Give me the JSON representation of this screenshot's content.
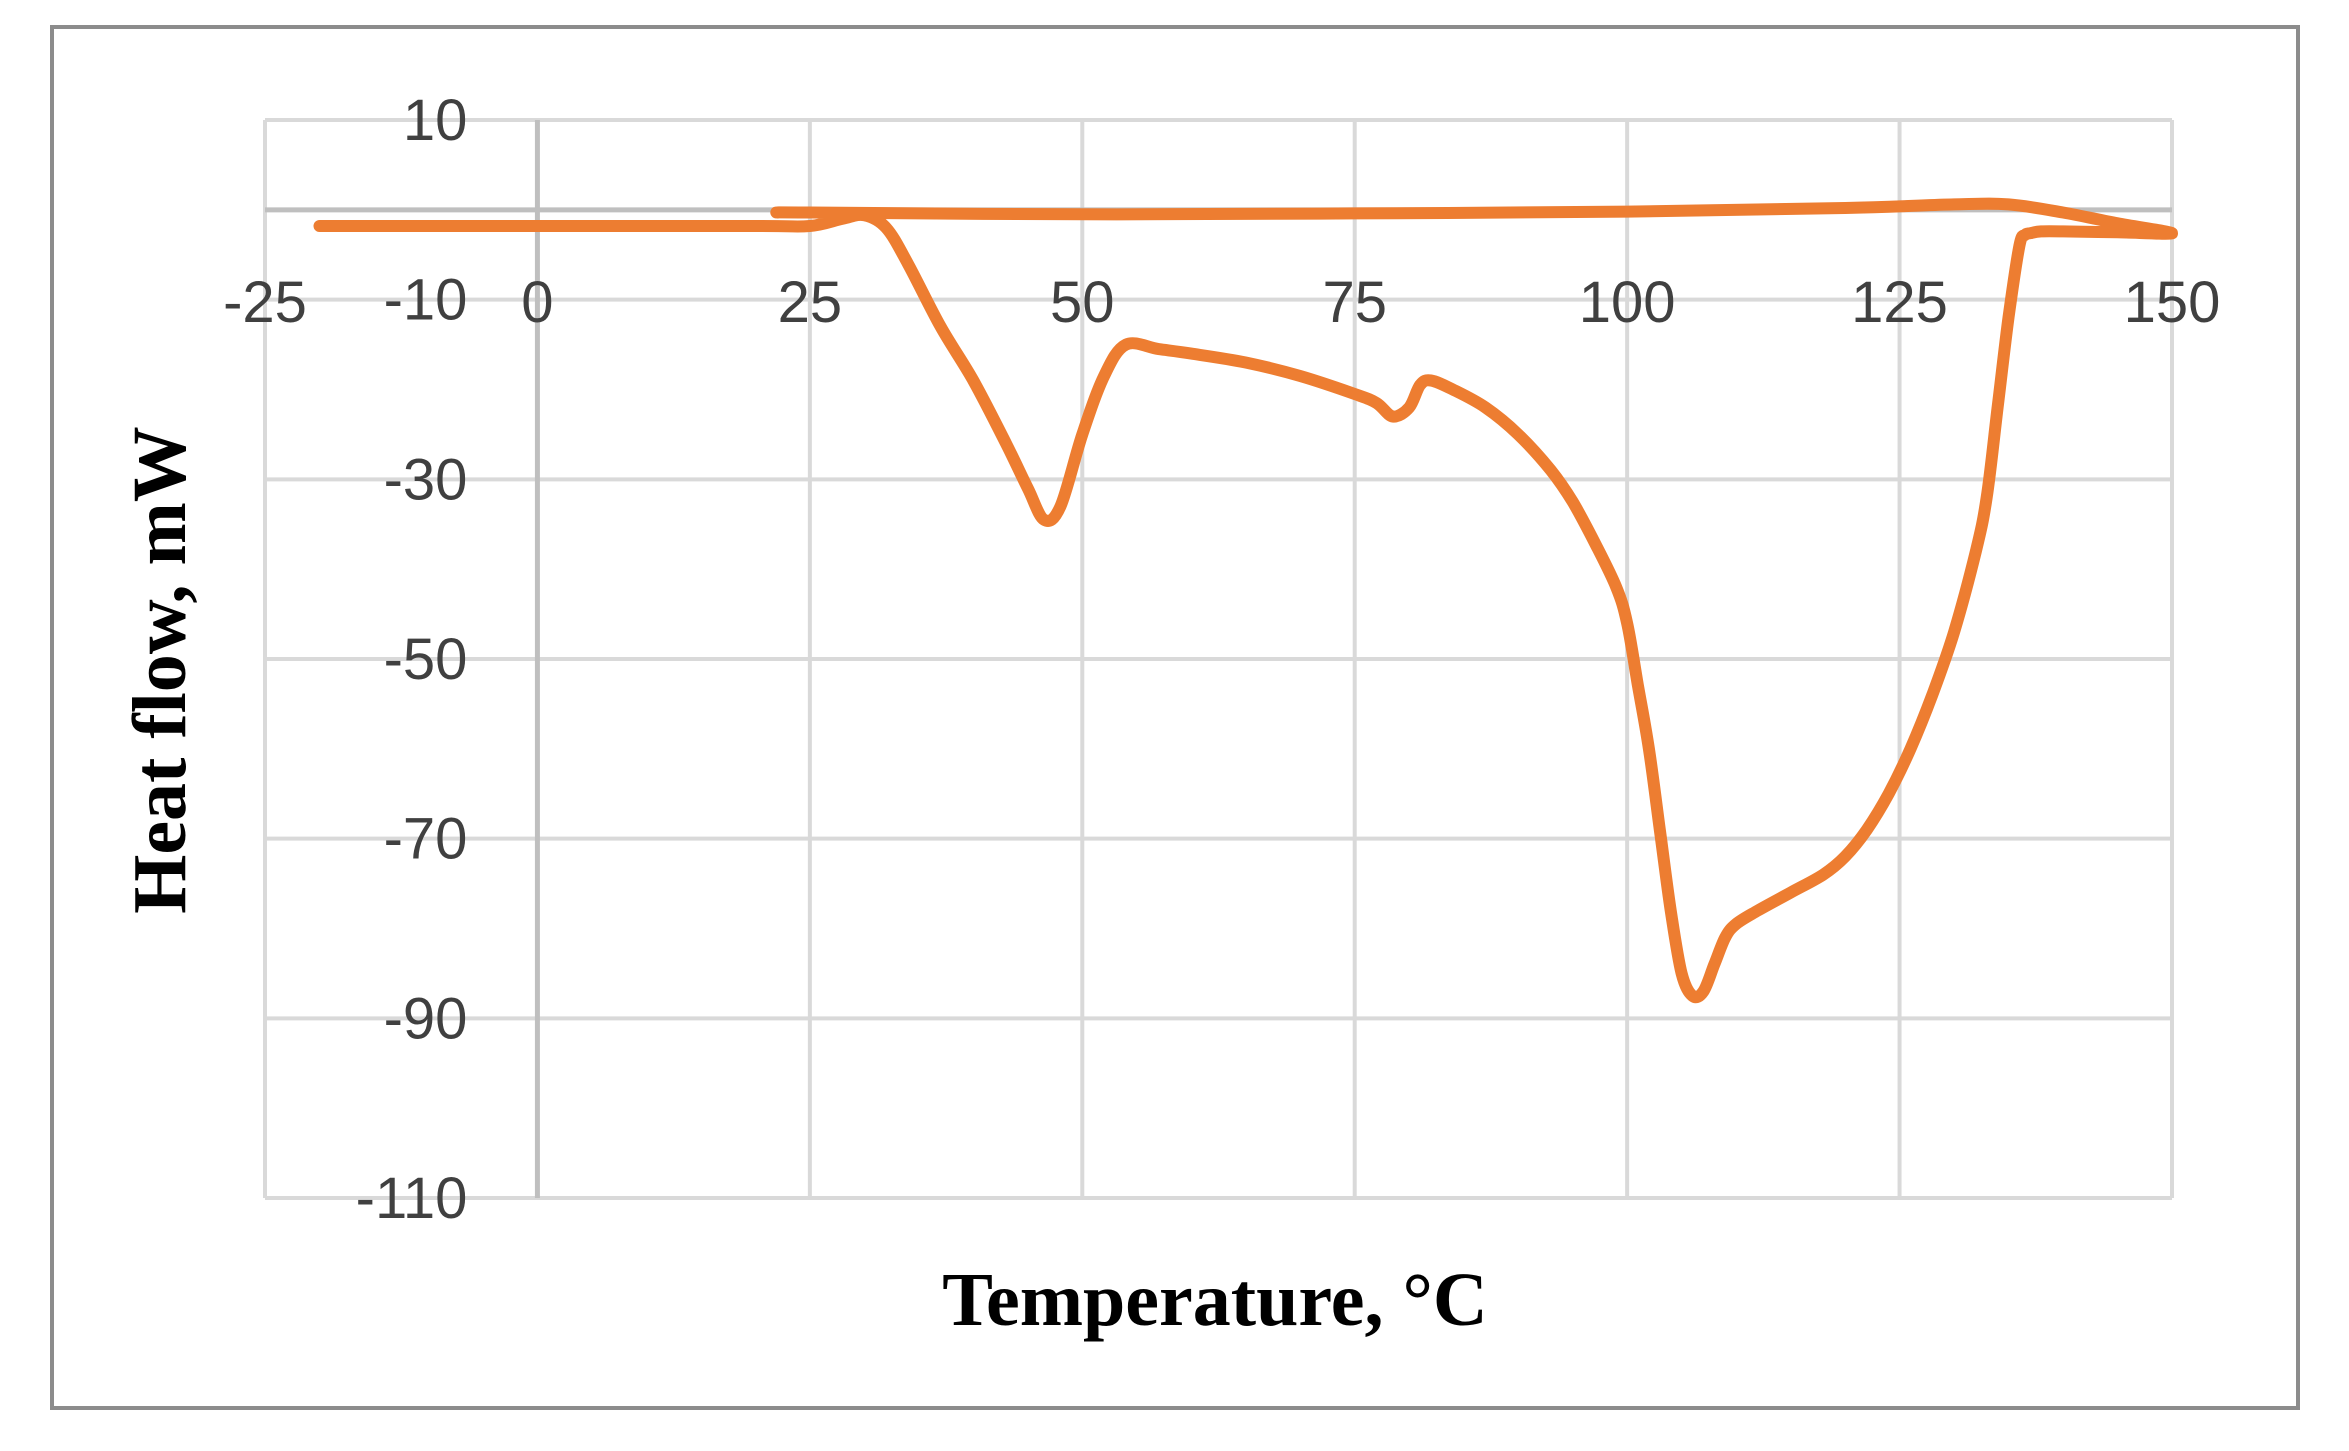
{
  "chart_data": {
    "type": "line",
    "title": "",
    "xlabel": "Temperature, °C",
    "ylabel": "Heat flow, mW",
    "xlim": [
      -25,
      150
    ],
    "ylim": [
      -110,
      10
    ],
    "xticks": [
      -25,
      0,
      25,
      50,
      75,
      100,
      125,
      150
    ],
    "yticks": [
      10,
      -10,
      -30,
      -50,
      -70,
      -90,
      -110
    ],
    "grid": true,
    "legend": "none",
    "colors": {
      "series": "#ed7d31",
      "grid": "#d9d9d9",
      "frame": "#8c8c8c",
      "tick_text": "#404040"
    },
    "series": [
      {
        "x": [
          -20,
          0,
          20,
          25,
          28,
          30,
          32,
          34,
          37,
          40,
          43,
          45,
          46.5,
          48,
          50,
          52,
          54,
          57,
          60,
          65,
          70,
          75,
          77,
          78.5,
          80,
          81,
          82,
          84,
          87,
          90,
          93,
          95,
          97,
          99,
          100,
          101,
          102,
          103,
          104,
          105,
          106,
          107,
          108,
          109,
          110,
          112,
          115,
          118,
          120,
          122,
          124,
          126,
          128,
          130,
          132,
          133,
          134,
          135,
          136,
          136.5,
          137,
          138,
          140,
          145,
          150,
          145,
          140,
          135,
          130,
          120,
          100,
          75,
          50,
          25,
          22
        ],
        "y": [
          -1.8,
          -1.8,
          -1.8,
          -1.8,
          -1.0,
          -0.6,
          -2.0,
          -6.0,
          -13.0,
          -19.0,
          -26.0,
          -31.0,
          -34.5,
          -33.0,
          -25.0,
          -18.5,
          -15.0,
          -15.5,
          -16.0,
          -17.0,
          -18.5,
          -20.5,
          -21.5,
          -23.0,
          -22.0,
          -19.5,
          -19.0,
          -20.0,
          -22.0,
          -25.0,
          -29.0,
          -32.5,
          -37.0,
          -42.0,
          -46.0,
          -53.0,
          -60.0,
          -69.0,
          -78.0,
          -85.0,
          -87.5,
          -87.0,
          -84.0,
          -81.0,
          -79.5,
          -78.0,
          -76.0,
          -74.0,
          -72.0,
          -69.0,
          -65.0,
          -60.0,
          -54.0,
          -47.0,
          -38.0,
          -32.0,
          -22.0,
          -12.0,
          -4.0,
          -2.8,
          -2.6,
          -2.4,
          -2.4,
          -2.5,
          -2.6,
          -1.5,
          -0.3,
          0.6,
          0.6,
          0.2,
          -0.2,
          -0.4,
          -0.5,
          -0.3,
          -0.3
        ]
      }
    ]
  }
}
